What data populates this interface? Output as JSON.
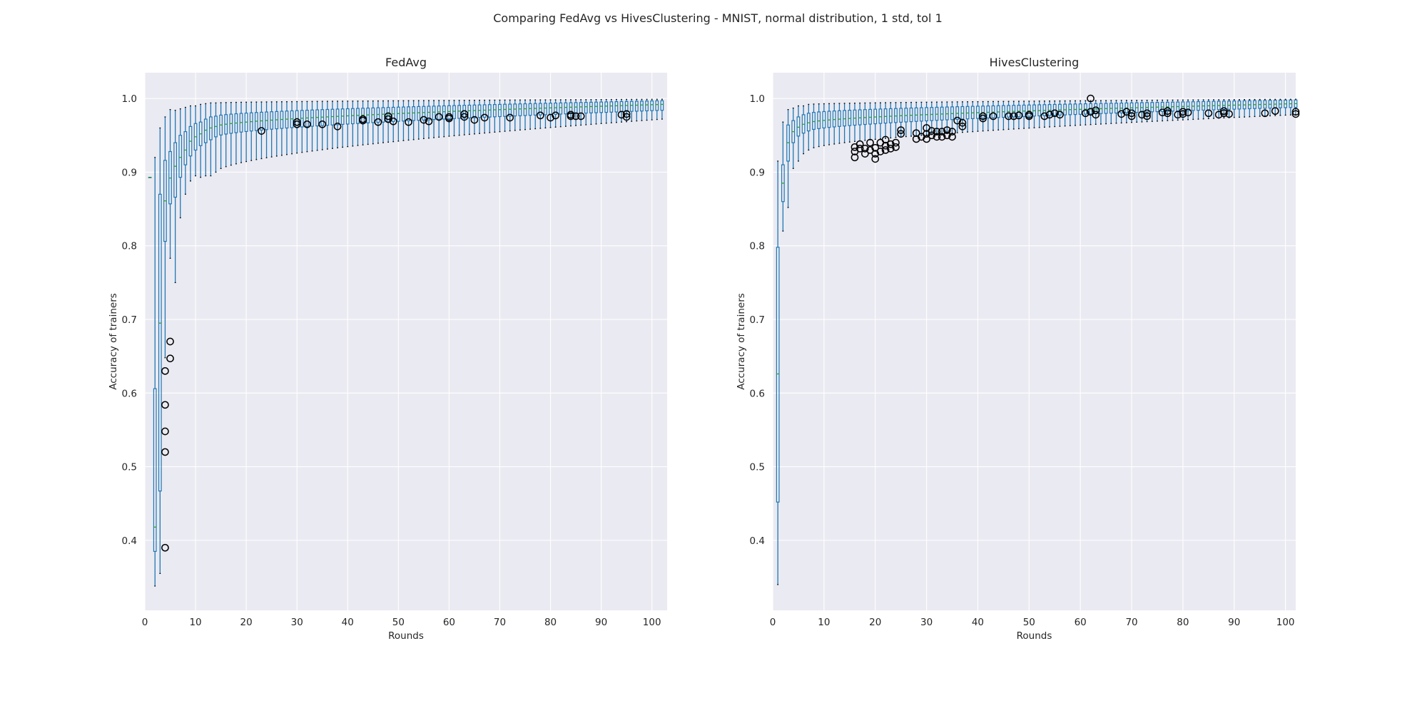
{
  "figure": {
    "suptitle": "Comparing FedAvg vs HivesClustering - MNIST, normal distribution, 1 std, tol 1"
  },
  "colors": {
    "axes_background": "#eaeaf2",
    "grid": "#ffffff",
    "box": "#1f77b4",
    "median": "#2ca02c",
    "whisker": "#1f77b4",
    "cap": "#000000",
    "flier": "#000000",
    "text": "#262626"
  },
  "chart_data": [
    {
      "type": "boxplot",
      "title": "FedAvg",
      "xlabel": "Rounds",
      "ylabel": "Accuracy of trainers",
      "xlim": [
        0,
        103
      ],
      "ylim": [
        0.305,
        1.035
      ],
      "xticks": [
        0,
        10,
        20,
        30,
        40,
        50,
        60,
        70,
        80,
        90,
        100
      ],
      "yticks": [
        0.4,
        0.5,
        0.6,
        0.7,
        0.8,
        0.9,
        1.0
      ],
      "grid": true,
      "rounds": [
        1,
        102
      ],
      "boxes": [
        {
          "x": 1,
          "whislo": 0.893,
          "q1": 0.893,
          "med": 0.893,
          "q3": 0.893,
          "whishi": 0.893
        },
        {
          "x": 2,
          "whislo": 0.338,
          "q1": 0.385,
          "med": 0.418,
          "q3": 0.606,
          "whishi": 0.92
        },
        {
          "x": 3,
          "whislo": 0.355,
          "q1": 0.467,
          "med": 0.695,
          "q3": 0.87,
          "whishi": 0.96
        },
        {
          "x": 4,
          "whislo": 0.648,
          "q1": 0.806,
          "med": 0.861,
          "q3": 0.916,
          "whishi": 0.975
        },
        {
          "x": 5,
          "whislo": 0.783,
          "q1": 0.857,
          "med": 0.892,
          "q3": 0.928,
          "whishi": 0.985
        },
        {
          "x": 6,
          "whislo": 0.75,
          "q1": 0.866,
          "med": 0.908,
          "q3": 0.94,
          "whishi": 0.984
        },
        {
          "x": 7,
          "whislo": 0.838,
          "q1": 0.893,
          "med": 0.92,
          "q3": 0.95,
          "whishi": 0.986
        },
        {
          "x": 8,
          "whislo": 0.87,
          "q1": 0.91,
          "med": 0.93,
          "q3": 0.955,
          "whishi": 0.988
        },
        {
          "x": 9,
          "whislo": 0.888,
          "q1": 0.922,
          "med": 0.942,
          "q3": 0.962,
          "whishi": 0.99
        },
        {
          "x": 10,
          "whislo": 0.895,
          "q1": 0.93,
          "med": 0.948,
          "q3": 0.966,
          "whishi": 0.99
        },
        {
          "x": 11,
          "whislo": 0.893,
          "q1": 0.936,
          "med": 0.952,
          "q3": 0.968,
          "whishi": 0.992
        },
        {
          "x": 12,
          "whislo": 0.895,
          "q1": 0.94,
          "med": 0.957,
          "q3": 0.972,
          "whishi": 0.993
        },
        {
          "x": 13,
          "whislo": 0.895,
          "q1": 0.944,
          "med": 0.96,
          "q3": 0.975,
          "whishi": 0.994
        }
      ],
      "late_rounds": {
        "start": 14,
        "end": 102,
        "q1_start": 0.948,
        "q1_end": 0.984,
        "med_start": 0.962,
        "med_end": 0.992,
        "q3_start": 0.976,
        "q3_end": 0.997,
        "whishi_start": 0.994,
        "whishi_end": 0.999,
        "whislo_start": 0.9,
        "whislo_end": 0.972
      },
      "fliers": [
        {
          "x": 4,
          "y": 0.39
        },
        {
          "x": 4,
          "y": 0.52
        },
        {
          "x": 4,
          "y": 0.548
        },
        {
          "x": 4,
          "y": 0.584
        },
        {
          "x": 4,
          "y": 0.63
        },
        {
          "x": 5,
          "y": 0.647
        },
        {
          "x": 5,
          "y": 0.67
        },
        {
          "x": 23,
          "y": 0.956
        },
        {
          "x": 30,
          "y": 0.965
        },
        {
          "x": 30,
          "y": 0.968
        },
        {
          "x": 32,
          "y": 0.965
        },
        {
          "x": 35,
          "y": 0.965
        },
        {
          "x": 38,
          "y": 0.962
        },
        {
          "x": 43,
          "y": 0.97
        },
        {
          "x": 43,
          "y": 0.972
        },
        {
          "x": 46,
          "y": 0.968
        },
        {
          "x": 48,
          "y": 0.972
        },
        {
          "x": 48,
          "y": 0.976
        },
        {
          "x": 49,
          "y": 0.969
        },
        {
          "x": 52,
          "y": 0.968
        },
        {
          "x": 55,
          "y": 0.971
        },
        {
          "x": 56,
          "y": 0.969
        },
        {
          "x": 58,
          "y": 0.975
        },
        {
          "x": 60,
          "y": 0.973
        },
        {
          "x": 60,
          "y": 0.975
        },
        {
          "x": 63,
          "y": 0.975
        },
        {
          "x": 63,
          "y": 0.979
        },
        {
          "x": 65,
          "y": 0.971
        },
        {
          "x": 67,
          "y": 0.974
        },
        {
          "x": 72,
          "y": 0.974
        },
        {
          "x": 78,
          "y": 0.977
        },
        {
          "x": 80,
          "y": 0.974
        },
        {
          "x": 81,
          "y": 0.977
        },
        {
          "x": 84,
          "y": 0.978
        },
        {
          "x": 84,
          "y": 0.976
        },
        {
          "x": 85,
          "y": 0.976
        },
        {
          "x": 86,
          "y": 0.976
        },
        {
          "x": 94,
          "y": 0.978
        },
        {
          "x": 95,
          "y": 0.975
        },
        {
          "x": 95,
          "y": 0.979
        }
      ]
    },
    {
      "type": "boxplot",
      "title": "HivesClustering",
      "xlabel": "Rounds",
      "ylabel": "Accuracy of trainers",
      "xlim": [
        0,
        102
      ],
      "ylim": [
        0.305,
        1.035
      ],
      "xticks": [
        0,
        10,
        20,
        30,
        40,
        50,
        60,
        70,
        80,
        90,
        100
      ],
      "yticks": [
        0.4,
        0.5,
        0.6,
        0.7,
        0.8,
        0.9,
        1.0
      ],
      "grid": true,
      "rounds": [
        1,
        102
      ],
      "boxes": [
        {
          "x": 1,
          "whislo": 0.34,
          "q1": 0.452,
          "med": 0.626,
          "q3": 0.798,
          "whishi": 0.915
        },
        {
          "x": 2,
          "whislo": 0.82,
          "q1": 0.86,
          "med": 0.885,
          "q3": 0.91,
          "whishi": 0.968
        },
        {
          "x": 3,
          "whislo": 0.852,
          "q1": 0.915,
          "med": 0.94,
          "q3": 0.964,
          "whishi": 0.985
        },
        {
          "x": 4,
          "whislo": 0.905,
          "q1": 0.94,
          "med": 0.955,
          "q3": 0.97,
          "whishi": 0.987
        },
        {
          "x": 5,
          "whislo": 0.915,
          "q1": 0.949,
          "med": 0.961,
          "q3": 0.975,
          "whishi": 0.99
        },
        {
          "x": 6,
          "whislo": 0.925,
          "q1": 0.953,
          "med": 0.965,
          "q3": 0.978,
          "whishi": 0.99
        }
      ],
      "late_rounds": {
        "start": 7,
        "end": 102,
        "q1_start": 0.956,
        "q1_end": 0.988,
        "med_start": 0.967,
        "med_end": 0.993,
        "q3_start": 0.98,
        "q3_end": 0.998,
        "whishi_start": 0.992,
        "whishi_end": 0.999,
        "whislo_start": 0.93,
        "whislo_end": 0.978
      },
      "fliers": [
        {
          "x": 16,
          "y": 0.92
        },
        {
          "x": 16,
          "y": 0.928
        },
        {
          "x": 16,
          "y": 0.934
        },
        {
          "x": 17,
          "y": 0.932
        },
        {
          "x": 17,
          "y": 0.938
        },
        {
          "x": 18,
          "y": 0.925
        },
        {
          "x": 18,
          "y": 0.932
        },
        {
          "x": 19,
          "y": 0.93
        },
        {
          "x": 19,
          "y": 0.94
        },
        {
          "x": 20,
          "y": 0.918
        },
        {
          "x": 20,
          "y": 0.925
        },
        {
          "x": 20,
          "y": 0.933
        },
        {
          "x": 21,
          "y": 0.928
        },
        {
          "x": 21,
          "y": 0.94
        },
        {
          "x": 22,
          "y": 0.93
        },
        {
          "x": 22,
          "y": 0.936
        },
        {
          "x": 22,
          "y": 0.944
        },
        {
          "x": 23,
          "y": 0.932
        },
        {
          "x": 23,
          "y": 0.938
        },
        {
          "x": 24,
          "y": 0.934
        },
        {
          "x": 24,
          "y": 0.94
        },
        {
          "x": 25,
          "y": 0.952
        },
        {
          "x": 25,
          "y": 0.957
        },
        {
          "x": 28,
          "y": 0.945
        },
        {
          "x": 28,
          "y": 0.953
        },
        {
          "x": 29,
          "y": 0.948
        },
        {
          "x": 30,
          "y": 0.945
        },
        {
          "x": 30,
          "y": 0.952
        },
        {
          "x": 30,
          "y": 0.96
        },
        {
          "x": 31,
          "y": 0.95
        },
        {
          "x": 31,
          "y": 0.956
        },
        {
          "x": 32,
          "y": 0.948
        },
        {
          "x": 32,
          "y": 0.955
        },
        {
          "x": 33,
          "y": 0.948
        },
        {
          "x": 33,
          "y": 0.955
        },
        {
          "x": 34,
          "y": 0.95
        },
        {
          "x": 34,
          "y": 0.957
        },
        {
          "x": 35,
          "y": 0.948
        },
        {
          "x": 35,
          "y": 0.955
        },
        {
          "x": 36,
          "y": 0.97
        },
        {
          "x": 37,
          "y": 0.962
        },
        {
          "x": 37,
          "y": 0.967
        },
        {
          "x": 41,
          "y": 0.973
        },
        {
          "x": 41,
          "y": 0.976
        },
        {
          "x": 43,
          "y": 0.976
        },
        {
          "x": 46,
          "y": 0.976
        },
        {
          "x": 47,
          "y": 0.976
        },
        {
          "x": 48,
          "y": 0.977
        },
        {
          "x": 50,
          "y": 0.976
        },
        {
          "x": 50,
          "y": 0.978
        },
        {
          "x": 53,
          "y": 0.976
        },
        {
          "x": 54,
          "y": 0.978
        },
        {
          "x": 55,
          "y": 0.98
        },
        {
          "x": 56,
          "y": 0.978
        },
        {
          "x": 61,
          "y": 0.98
        },
        {
          "x": 62,
          "y": 0.982
        },
        {
          "x": 62,
          "y": 1.0
        },
        {
          "x": 63,
          "y": 0.978
        },
        {
          "x": 63,
          "y": 0.984
        },
        {
          "x": 68,
          "y": 0.979
        },
        {
          "x": 69,
          "y": 0.982
        },
        {
          "x": 70,
          "y": 0.976
        },
        {
          "x": 70,
          "y": 0.98
        },
        {
          "x": 72,
          "y": 0.978
        },
        {
          "x": 73,
          "y": 0.976
        },
        {
          "x": 73,
          "y": 0.98
        },
        {
          "x": 76,
          "y": 0.981
        },
        {
          "x": 77,
          "y": 0.98
        },
        {
          "x": 77,
          "y": 0.983
        },
        {
          "x": 79,
          "y": 0.978
        },
        {
          "x": 80,
          "y": 0.979
        },
        {
          "x": 80,
          "y": 0.982
        },
        {
          "x": 81,
          "y": 0.981
        },
        {
          "x": 85,
          "y": 0.98
        },
        {
          "x": 87,
          "y": 0.978
        },
        {
          "x": 88,
          "y": 0.98
        },
        {
          "x": 88,
          "y": 0.983
        },
        {
          "x": 89,
          "y": 0.979
        },
        {
          "x": 96,
          "y": 0.98
        },
        {
          "x": 98,
          "y": 0.983
        },
        {
          "x": 102,
          "y": 0.979
        },
        {
          "x": 102,
          "y": 0.982
        }
      ]
    }
  ]
}
